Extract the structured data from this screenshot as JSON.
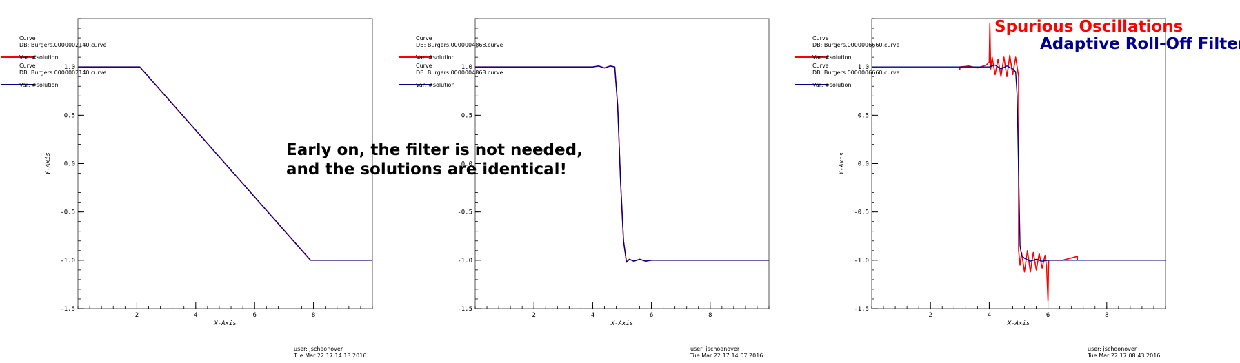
{
  "colors": {
    "spurious": "#ff0000",
    "filter": "#00008b",
    "axis": "#000000"
  },
  "annotations": {
    "caption_line1": "Early on, the filter is not needed,",
    "caption_line2": "and the solutions are identical!",
    "spurious_label": "Spurious Oscillations",
    "filter_label": "Adaptive Roll-Off Filter"
  },
  "chart_data": [
    {
      "type": "line",
      "xlabel": "X-Axis",
      "ylabel": "Y-Axis",
      "xlim": [
        0,
        10
      ],
      "ylim": [
        -1.5,
        1.5
      ],
      "xticks": [
        "2",
        "4",
        "6",
        "8"
      ],
      "yticks": [
        "1.0",
        "0.5",
        "0.0",
        "-0.5",
        "-1.0",
        "-1.5"
      ],
      "legend": [
        {
          "curve": "Curve",
          "db": "DB: Burgers.0000002140.curve",
          "var": "Var: #solution",
          "color": "#ff0000"
        },
        {
          "curve": "Curve",
          "db": "DB: Burgers.0000002140.curve",
          "var": "Var: #solution",
          "color": "#00008b"
        }
      ],
      "footer_user": "user: jschoonover",
      "footer_date": "Tue Mar 22 17:14:13 2016",
      "series": [
        {
          "color": "#ff0000",
          "x": [
            0,
            2.1,
            7.9,
            10
          ],
          "y": [
            1.0,
            1.0,
            -1.0,
            -1.0
          ]
        },
        {
          "color": "#00008b",
          "x": [
            0,
            2.1,
            7.9,
            10
          ],
          "y": [
            1.0,
            1.0,
            -1.0,
            -1.0
          ]
        }
      ]
    },
    {
      "type": "line",
      "xlabel": "X-Axis",
      "ylabel": "",
      "xlim": [
        0,
        10
      ],
      "ylim": [
        -1.5,
        1.5
      ],
      "xticks": [
        "2",
        "4",
        "6",
        "8"
      ],
      "yticks": [
        "1.0",
        "0.5",
        "0.0",
        "-0.5",
        "-1.0",
        "-1.5"
      ],
      "legend": [
        {
          "curve": "Curve",
          "db": "DB: Burgers.0000004868.curve",
          "var": "Var: #solution",
          "color": "#ff0000"
        },
        {
          "curve": "Curve",
          "db": "DB: Burgers.0000004868.curve",
          "var": "Var: #solution",
          "color": "#00008b"
        }
      ],
      "footer_user": "user: jschoonover",
      "footer_date": "Tue Mar 22 17:14:07 2016",
      "series": [
        {
          "color": "#ff0000",
          "x": [
            0,
            4.0,
            4.2,
            4.4,
            4.6,
            4.75,
            4.85,
            4.95,
            5.05,
            5.15,
            5.25,
            5.4,
            5.6,
            5.8,
            6.0,
            10
          ],
          "y": [
            1.0,
            1.0,
            1.01,
            0.99,
            1.01,
            1.0,
            0.6,
            -0.2,
            -0.8,
            -1.02,
            -0.99,
            -1.01,
            -0.99,
            -1.01,
            -1.0,
            -1.0
          ]
        },
        {
          "color": "#00008b",
          "x": [
            0,
            4.0,
            4.2,
            4.4,
            4.6,
            4.75,
            4.85,
            4.95,
            5.05,
            5.15,
            5.25,
            5.4,
            5.6,
            5.8,
            6.0,
            10
          ],
          "y": [
            1.0,
            1.0,
            1.01,
            0.99,
            1.01,
            1.0,
            0.6,
            -0.2,
            -0.8,
            -1.02,
            -0.99,
            -1.01,
            -0.99,
            -1.01,
            -1.0,
            -1.0
          ]
        }
      ]
    },
    {
      "type": "line",
      "xlabel": "X-Axis",
      "ylabel": "Y-Axis",
      "xlim": [
        0,
        10
      ],
      "ylim": [
        -1.5,
        1.5
      ],
      "xticks": [
        "2",
        "4",
        "6",
        "8"
      ],
      "yticks": [
        "1.0",
        "0.5",
        "0.0",
        "-0.5",
        "-1.0",
        "-1.5"
      ],
      "legend": [
        {
          "curve": "Curve",
          "db": "DB: Burgers.0000006660.curve",
          "var": "Var: #solution",
          "color": "#ff0000"
        },
        {
          "curve": "Curve",
          "db": "DB: Burgers.0000006660.curve",
          "var": "Var: #solution",
          "color": "#00008b"
        }
      ],
      "footer_user": "user: jschoonover",
      "footer_date": "Tue Mar 22 17:08:43 2016",
      "series": [
        {
          "color": "#ff0000",
          "x": [
            3.0,
            3.0,
            3.3,
            3.6,
            3.9,
            4.0,
            4.02,
            4.05,
            4.1,
            4.2,
            4.3,
            4.4,
            4.5,
            4.6,
            4.7,
            4.8,
            4.9,
            5.0,
            5.0,
            5.05,
            5.1,
            5.2,
            5.3,
            5.4,
            5.5,
            5.6,
            5.7,
            5.8,
            5.9,
            5.95,
            6.0,
            6.02,
            6.1,
            6.5,
            7.0,
            7.0
          ],
          "y": [
            0.97,
            1.0,
            1.01,
            0.99,
            1.02,
            1.05,
            1.45,
            0.98,
            1.1,
            0.92,
            1.08,
            0.9,
            1.1,
            0.9,
            1.12,
            0.92,
            1.1,
            0.9,
            -0.9,
            -1.05,
            -0.92,
            -1.12,
            -0.9,
            -1.12,
            -0.92,
            -1.1,
            -0.93,
            -1.08,
            -0.95,
            -1.06,
            -1.42,
            -1.0,
            -1.0,
            -1.0,
            -0.96,
            -1.0
          ]
        },
        {
          "color": "#00008b",
          "x": [
            0,
            4.0,
            4.2,
            4.4,
            4.6,
            4.8,
            4.9,
            4.95,
            5.0,
            5.05,
            5.1,
            5.2,
            5.4,
            5.6,
            5.8,
            6.0,
            10
          ],
          "y": [
            1.0,
            1.0,
            1.02,
            0.98,
            1.01,
            0.98,
            0.95,
            0.7,
            -0.1,
            -0.85,
            -0.95,
            -0.98,
            -1.01,
            -0.99,
            -1.01,
            -1.0,
            -1.0
          ]
        }
      ]
    }
  ]
}
